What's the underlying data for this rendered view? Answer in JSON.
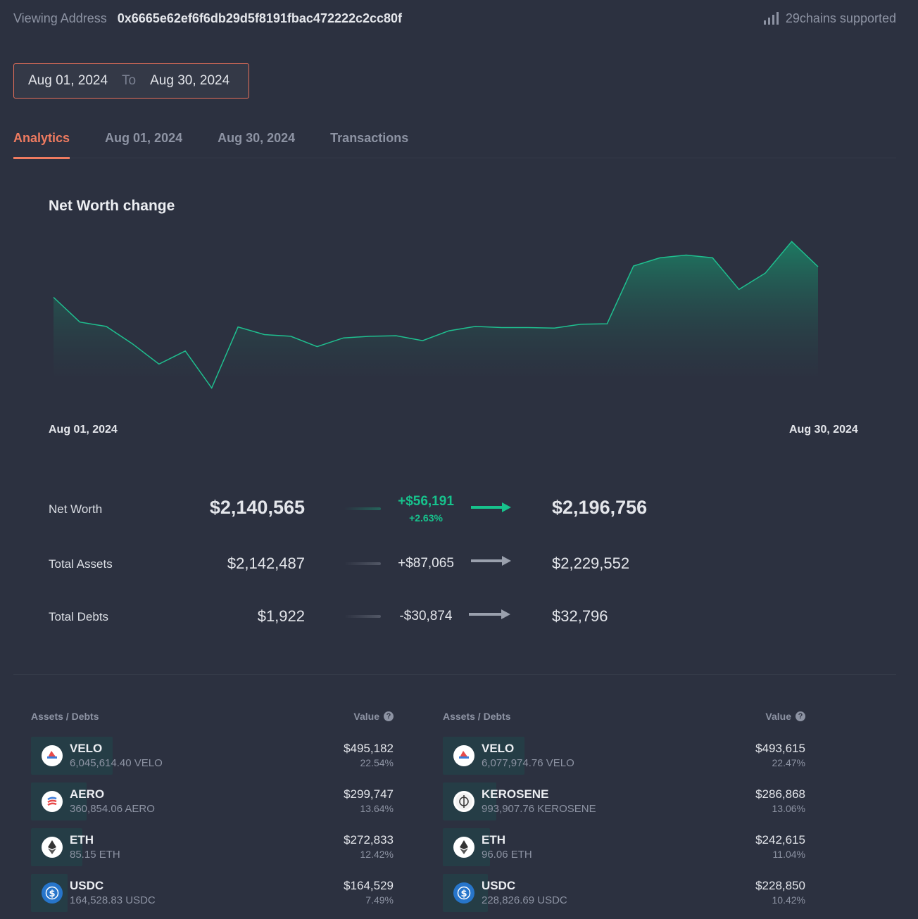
{
  "header": {
    "viewing_label": "Viewing Address",
    "address": "0x6665e62ef6f6db29d5f8191fbac472222c2cc80f",
    "chains_text": "29chains supported"
  },
  "date_range": {
    "from": "Aug 01, 2024",
    "separator": "To",
    "to": "Aug 30, 2024"
  },
  "tabs": [
    {
      "label": "Analytics",
      "active": true
    },
    {
      "label": "Aug 01, 2024"
    },
    {
      "label": "Aug 30, 2024"
    },
    {
      "label": "Transactions"
    }
  ],
  "chart_data": {
    "type": "area",
    "title": "Net Worth change",
    "x_start_label": "Aug 01, 2024",
    "x_end_label": "Aug 30, 2024",
    "series": [
      {
        "name": "Net Worth",
        "values": [
          2140565,
          2095000,
          2087000,
          2055000,
          2018000,
          2042000,
          1974000,
          2086000,
          2072000,
          2069000,
          2050000,
          2066000,
          2069000,
          2070000,
          2061000,
          2079000,
          2087000,
          2085000,
          2085000,
          2084000,
          2091000,
          2092000,
          2198000,
          2213000,
          2218000,
          2213000,
          2155000,
          2185000,
          2243000,
          2196756
        ]
      }
    ],
    "y_range": [
      1950000,
      2260000
    ],
    "colors": {
      "line": "#1fbf8f",
      "fill_top": "#1d7a62",
      "fill_bottom": "#2c3140"
    }
  },
  "summary": {
    "rows": [
      {
        "label": "Net Worth",
        "from": "$2,140,565",
        "delta": "+$56,191",
        "delta_pct": "+2.63%",
        "to": "$2,196,756"
      },
      {
        "label": "Total Assets",
        "from": "$2,142,487",
        "delta": "+$87,065",
        "to": "$2,229,552"
      },
      {
        "label": "Total Debts",
        "from": "$1,922",
        "delta": "-$30,874",
        "to": "$32,796"
      }
    ],
    "positive_color": "#17c28c",
    "neutral_color": "#9aa0ad"
  },
  "left_table": {
    "col_asset": "Assets / Debts",
    "col_value": "Value",
    "rows": [
      {
        "symbol": "VELO",
        "amount": "6,045,614.40 VELO",
        "value": "$495,182",
        "pct": "22.54%",
        "icon": "velo-icon",
        "share": 1.0
      },
      {
        "symbol": "AERO",
        "amount": "360,854.06 AERO",
        "value": "$299,747",
        "pct": "13.64%",
        "icon": "aero-icon",
        "share": 0.61
      },
      {
        "symbol": "ETH",
        "amount": "85.15 ETH",
        "value": "$272,833",
        "pct": "12.42%",
        "icon": "eth-icon",
        "share": 0.55
      },
      {
        "symbol": "USDC",
        "amount": "164,528.83 USDC",
        "value": "$164,529",
        "pct": "7.49%",
        "icon": "usdc-icon",
        "share": 0.33
      }
    ]
  },
  "right_table": {
    "col_asset": "Assets / Debts",
    "col_value": "Value",
    "rows": [
      {
        "symbol": "VELO",
        "amount": "6,077,974.76 VELO",
        "value": "$493,615",
        "pct": "22.47%",
        "icon": "velo-icon",
        "share": 1.0
      },
      {
        "symbol": "KEROSENE",
        "amount": "993,907.76 KEROSENE",
        "value": "$286,868",
        "pct": "13.06%",
        "icon": "kerosene-icon",
        "share": 0.58
      },
      {
        "symbol": "ETH",
        "amount": "96.06 ETH",
        "value": "$242,615",
        "pct": "11.04%",
        "icon": "eth-icon",
        "share": 0.49
      },
      {
        "symbol": "USDC",
        "amount": "228,826.69 USDC",
        "value": "$228,850",
        "pct": "10.42%",
        "icon": "usdc-icon",
        "share": 0.46
      }
    ]
  }
}
